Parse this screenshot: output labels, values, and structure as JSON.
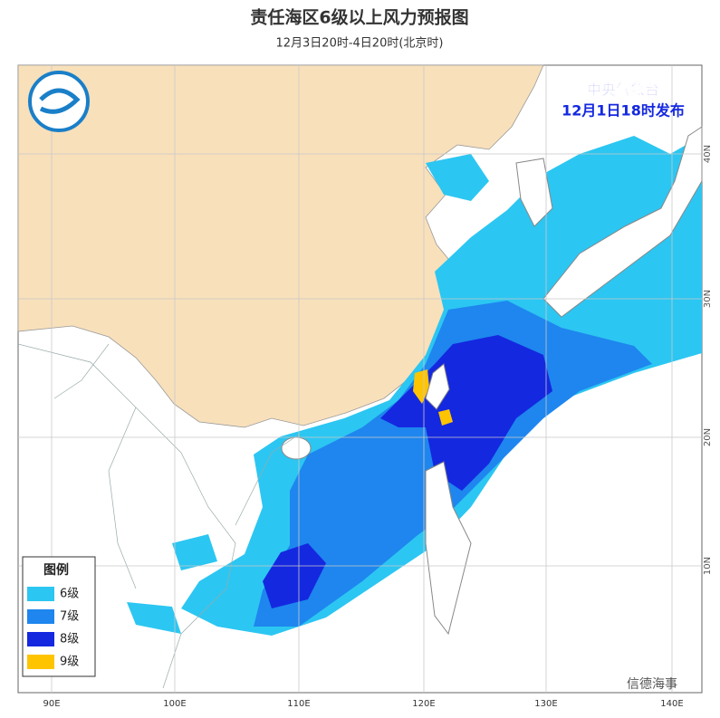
{
  "header": {
    "title": "责任海区6级以上风力预报图",
    "subtitle": "12月3日20时-4日20时(北京时)"
  },
  "issuer": {
    "agency": "中央气象台",
    "issued": "12月1日18时发布"
  },
  "legend": {
    "title": "图例",
    "items": [
      {
        "label": "6级",
        "color": "#2cc6f2"
      },
      {
        "label": "7级",
        "color": "#1e86ee"
      },
      {
        "label": "8级",
        "color": "#1428e0"
      },
      {
        "label": "9级",
        "color": "#ffc400"
      }
    ]
  },
  "map": {
    "lon_labels": [
      "90E",
      "100E",
      "110E",
      "120E",
      "130E",
      "140E"
    ],
    "lat_labels": [
      "40N",
      "30N",
      "20N",
      "10N"
    ]
  },
  "watermark": "信德海事"
}
